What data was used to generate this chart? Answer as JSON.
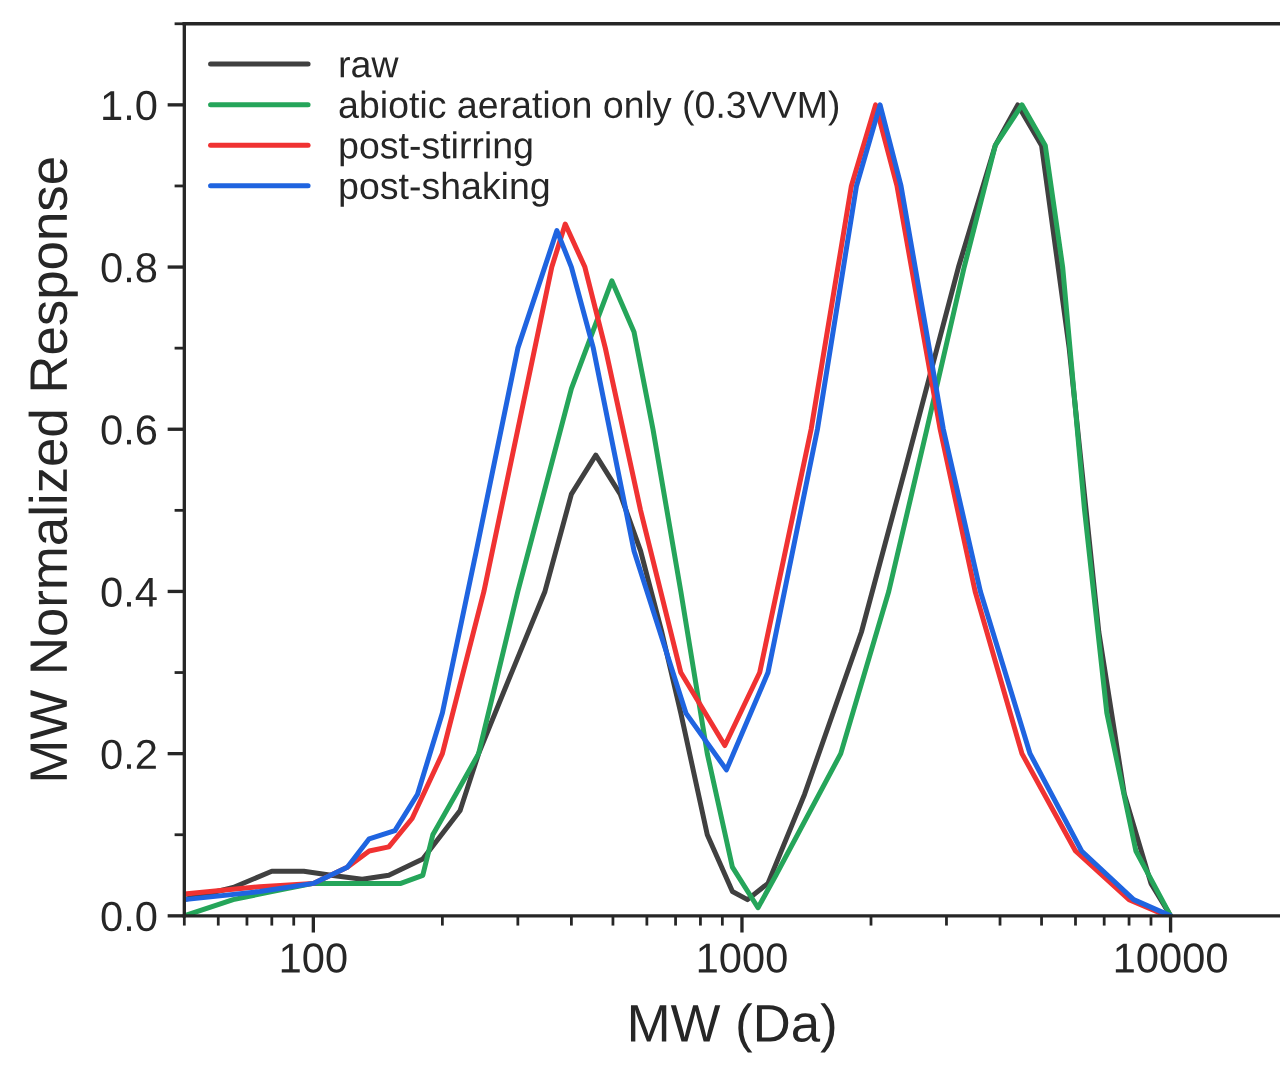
{
  "chart_data": {
    "type": "line",
    "xlabel": "MW (Da)",
    "ylabel": "MW Normalized Response",
    "log": "x",
    "xlim": [
      50,
      18000
    ],
    "xticks": [
      100,
      1000,
      10000
    ],
    "ylim": [
      0,
      1.1
    ],
    "yticks": [
      {
        "value": 0,
        "label": "0.0"
      },
      0.2,
      0.4,
      0.6,
      0.8,
      {
        "value": 1,
        "label": "1.0"
      }
    ],
    "grid": false,
    "legend": "top left",
    "marker": "none",
    "line_style": "solid",
    "series": [
      {
        "name": "raw",
        "color": "#404040",
        "x": [
          50,
          65,
          80,
          95,
          110,
          130,
          150,
          180,
          220,
          243,
          280,
          347,
          400,
          456,
          520,
          580,
          650,
          720,
          830,
          950,
          1030,
          1150,
          1400,
          1900,
          2400,
          3200,
          3900,
          4400,
          5000,
          5800,
          6800,
          7800,
          9000,
          10000
        ],
        "values": [
          0.02,
          0.035,
          0.055,
          0.055,
          0.05,
          0.045,
          0.05,
          0.07,
          0.13,
          0.2,
          0.28,
          0.4,
          0.52,
          0.568,
          0.52,
          0.45,
          0.35,
          0.25,
          0.1,
          0.03,
          0.02,
          0.04,
          0.15,
          0.35,
          0.55,
          0.8,
          0.95,
          1.0,
          0.95,
          0.7,
          0.35,
          0.15,
          0.04,
          0
        ]
      },
      {
        "name": "abiotic aeration only (0.3VVM)",
        "color": "#25a55a",
        "x": [
          50,
          65,
          80,
          100,
          130,
          160,
          180,
          190,
          215,
          243,
          300,
          400,
          497,
          560,
          620,
          720,
          830,
          950,
          1090,
          1200,
          1700,
          2200,
          2700,
          3300,
          3900,
          4500,
          5100,
          5600,
          6300,
          7100,
          8300,
          10000
        ],
        "values": [
          0,
          0.02,
          0.03,
          0.04,
          0.04,
          0.04,
          0.05,
          0.1,
          0.15,
          0.2,
          0.4,
          0.65,
          0.783,
          0.72,
          0.6,
          0.4,
          0.2,
          0.06,
          0.01,
          0.05,
          0.2,
          0.4,
          0.6,
          0.8,
          0.95,
          1.0,
          0.95,
          0.8,
          0.5,
          0.25,
          0.08,
          0
        ]
      },
      {
        "name": "post-stirring",
        "color": "#f03232",
        "x": [
          50,
          75,
          100,
          120,
          135,
          150,
          170,
          200,
          250,
          300,
          360,
          387,
          430,
          480,
          580,
          720,
          912,
          1100,
          1450,
          1800,
          2050,
          2300,
          2900,
          3500,
          4500,
          6000,
          8000,
          9800
        ],
        "values": [
          0.027,
          0.036,
          0.04,
          0.06,
          0.08,
          0.085,
          0.12,
          0.2,
          0.4,
          0.6,
          0.8,
          0.853,
          0.8,
          0.7,
          0.5,
          0.3,
          0.21,
          0.3,
          0.6,
          0.9,
          1.0,
          0.9,
          0.6,
          0.4,
          0.2,
          0.08,
          0.02,
          0
        ]
      },
      {
        "name": "post-shaking",
        "color": "#1f64e0",
        "x": [
          50,
          75,
          100,
          120,
          135,
          155,
          175,
          200,
          240,
          300,
          370,
          400,
          450,
          560,
          740,
          920,
          1150,
          1500,
          1850,
          2100,
          2350,
          2950,
          3600,
          4700,
          6200,
          8200,
          10000
        ],
        "values": [
          0.02,
          0.03,
          0.04,
          0.06,
          0.095,
          0.105,
          0.15,
          0.25,
          0.45,
          0.7,
          0.845,
          0.8,
          0.7,
          0.45,
          0.25,
          0.18,
          0.3,
          0.6,
          0.9,
          1.0,
          0.9,
          0.6,
          0.4,
          0.2,
          0.08,
          0.02,
          0
        ]
      }
    ]
  }
}
